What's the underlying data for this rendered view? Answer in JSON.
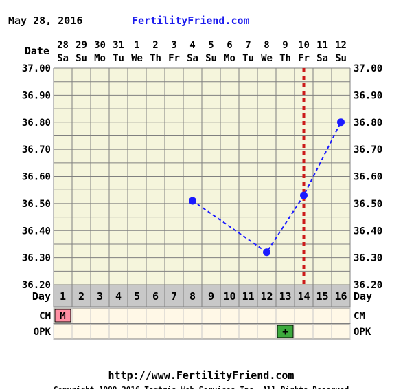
{
  "header": {
    "date": "May 28, 2016",
    "site": "FertilityFriend.com"
  },
  "labels": {
    "date_row": "Date",
    "day_row": "Day",
    "cm_row": "CM",
    "opk_row": "OPK"
  },
  "footer": {
    "url": "http://www.FertilityFriend.com",
    "copyright": "Copyright 1999-2016 Tamtris Web Services Inc.   All Rights Reserved"
  },
  "colors": {
    "background": "#ffffff",
    "plot_background": "#f5f5dc",
    "grid": "#808080",
    "temperature_line": "#1a1aff",
    "coverline_marker": "#cc1a1a",
    "period_cell": "#ff8fa3",
    "opk_positive": "#3daa3d",
    "day_row": "#c8c8c8",
    "row_cell": "#fff8e7",
    "site_text": "#1a1aee"
  },
  "chart_data": {
    "type": "line",
    "title": "FertilityFriend.com",
    "xlabel": "Date",
    "ylabel": "",
    "ylim": [
      36.2,
      37.0
    ],
    "y_ticks": [
      "37.00",
      "36.90",
      "36.80",
      "36.70",
      "36.60",
      "36.50",
      "36.40",
      "36.30",
      "36.20"
    ],
    "y_tick_values": [
      37.0,
      36.9,
      36.8,
      36.7,
      36.6,
      36.5,
      36.4,
      36.3,
      36.2
    ],
    "y_minor_step": 0.05,
    "grid": true,
    "dates": [
      "28",
      "29",
      "30",
      "31",
      "1",
      "2",
      "3",
      "4",
      "5",
      "6",
      "7",
      "8",
      "9",
      "10",
      "11",
      "12"
    ],
    "weekdays": [
      "Sa",
      "Su",
      "Mo",
      "Tu",
      "We",
      "Th",
      "Fr",
      "Sa",
      "Su",
      "Mo",
      "Tu",
      "We",
      "Th",
      "Fr",
      "Sa",
      "Su"
    ],
    "cycle_days": [
      "1",
      "2",
      "3",
      "4",
      "5",
      "6",
      "7",
      "8",
      "9",
      "10",
      "11",
      "12",
      "13",
      "14",
      "15",
      "16"
    ],
    "series": [
      {
        "x": [
          8,
          12,
          14,
          16
        ],
        "values": [
          36.51,
          36.32,
          36.53,
          36.8
        ]
      }
    ],
    "ovulation_day": 14,
    "cm": [
      {
        "day": 1,
        "label": "M"
      }
    ],
    "opk": [
      {
        "day": 13,
        "label": "+"
      }
    ]
  }
}
